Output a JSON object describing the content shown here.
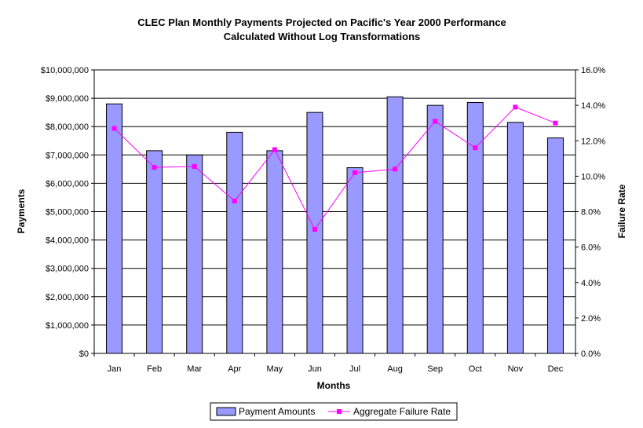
{
  "chart_data": {
    "type": "bar",
    "title": "CLEC Plan Monthly Payments Projected on Pacific's Year 2000 Performance",
    "subtitle": "Calculated Without Log Transformations",
    "xlabel": "Months",
    "ylabel": "Payments",
    "y2label": "Failure Rate",
    "categories": [
      "Jan",
      "Feb",
      "Mar",
      "Apr",
      "May",
      "Jun",
      "Jul",
      "Aug",
      "Sep",
      "Oct",
      "Nov",
      "Dec"
    ],
    "ylim": [
      0,
      10000000
    ],
    "y2lim": [
      0,
      16
    ],
    "yticks": [
      "$0",
      "$1,000,000",
      "$2,000,000",
      "$3,000,000",
      "$4,000,000",
      "$5,000,000",
      "$6,000,000",
      "$7,000,000",
      "$8,000,000",
      "$9,000,000",
      "$10,000,000"
    ],
    "y2ticks": [
      "0.0%",
      "2.0%",
      "4.0%",
      "6.0%",
      "8.0%",
      "10.0%",
      "12.0%",
      "14.0%",
      "16.0%"
    ],
    "grid": true,
    "legend_position": "bottom",
    "series": [
      {
        "name": "Payment Amounts",
        "type": "bar",
        "axis": "left",
        "color": "#9999FF",
        "values": [
          8800000,
          7150000,
          7000000,
          7800000,
          7150000,
          8500000,
          6550000,
          9050000,
          8750000,
          8850000,
          8150000,
          7600000
        ]
      },
      {
        "name": "Aggregate Failure Rate",
        "type": "line",
        "axis": "right",
        "color": "#FF00FF",
        "values": [
          12.7,
          10.5,
          10.55,
          8.6,
          11.5,
          7.0,
          10.2,
          10.4,
          13.1,
          11.6,
          13.9,
          13.0
        ]
      }
    ]
  }
}
